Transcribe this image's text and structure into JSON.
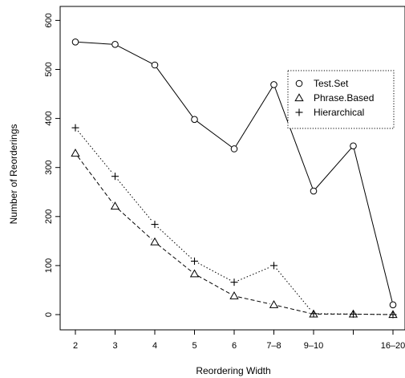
{
  "chart_data": {
    "type": "line",
    "xlabel": "Reordering Width",
    "ylabel": "Number of Reorderings",
    "categories": [
      "2",
      "3",
      "4",
      "5",
      "6",
      "7–8",
      "9–10",
      "",
      "16–20"
    ],
    "ylim": [
      0,
      600
    ],
    "yticks": [
      0,
      100,
      200,
      300,
      400,
      500,
      600
    ],
    "grid": false,
    "legend": "top-right",
    "series": [
      {
        "name": "Test.Set",
        "marker": "circle",
        "line": "solid",
        "values": [
          556,
          551,
          509,
          398,
          338,
          469,
          252,
          344,
          20
        ]
      },
      {
        "name": "Phrase.Based",
        "marker": "triangle",
        "line": "dashed",
        "values": [
          329,
          221,
          148,
          83,
          38,
          20,
          1,
          1,
          0
        ]
      },
      {
        "name": "Hierarchical",
        "marker": "plus",
        "line": "dotted",
        "values": [
          381,
          282,
          184,
          109,
          66,
          100,
          2,
          1,
          0
        ]
      }
    ]
  }
}
